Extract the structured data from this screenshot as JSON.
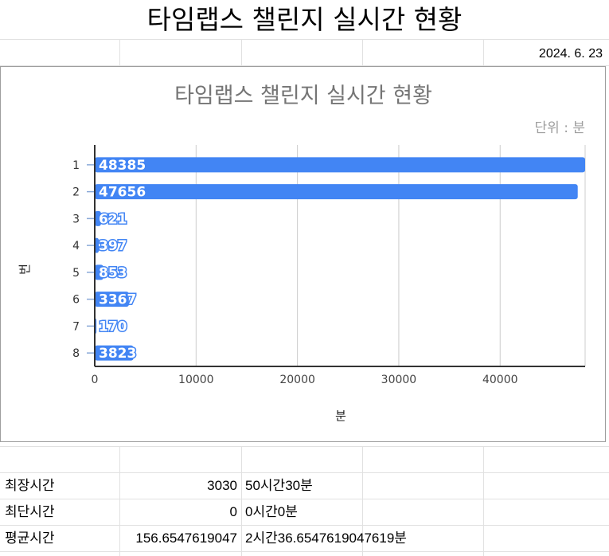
{
  "sheet": {
    "title": "타임랩스 챌린지 실시간 현황",
    "date": "2024. 6. 23"
  },
  "chart_data": {
    "type": "bar",
    "orientation": "horizontal",
    "title": "타임랩스 챌린지 실시간 현황",
    "subtitle": "단위 : 분",
    "xlabel": "분",
    "ylabel": "번",
    "categories": [
      "1",
      "2",
      "3",
      "4",
      "5",
      "6",
      "7",
      "8"
    ],
    "values": [
      48385,
      47656,
      621,
      397,
      853,
      3367,
      170,
      3823
    ],
    "xlim": [
      0,
      48385
    ],
    "xticks": [
      0,
      10000,
      20000,
      30000,
      40000
    ],
    "grid": true,
    "data_labels": true,
    "bar_color": "#4285f4"
  },
  "stats": [
    {
      "label": "최장시간",
      "value": "3030",
      "text": "50시간30분"
    },
    {
      "label": "최단시간",
      "value": "0",
      "text": "0시간0분"
    },
    {
      "label": "평균시간",
      "value": "156.6547619047",
      "text": "2시간36.6547619047619분"
    }
  ]
}
